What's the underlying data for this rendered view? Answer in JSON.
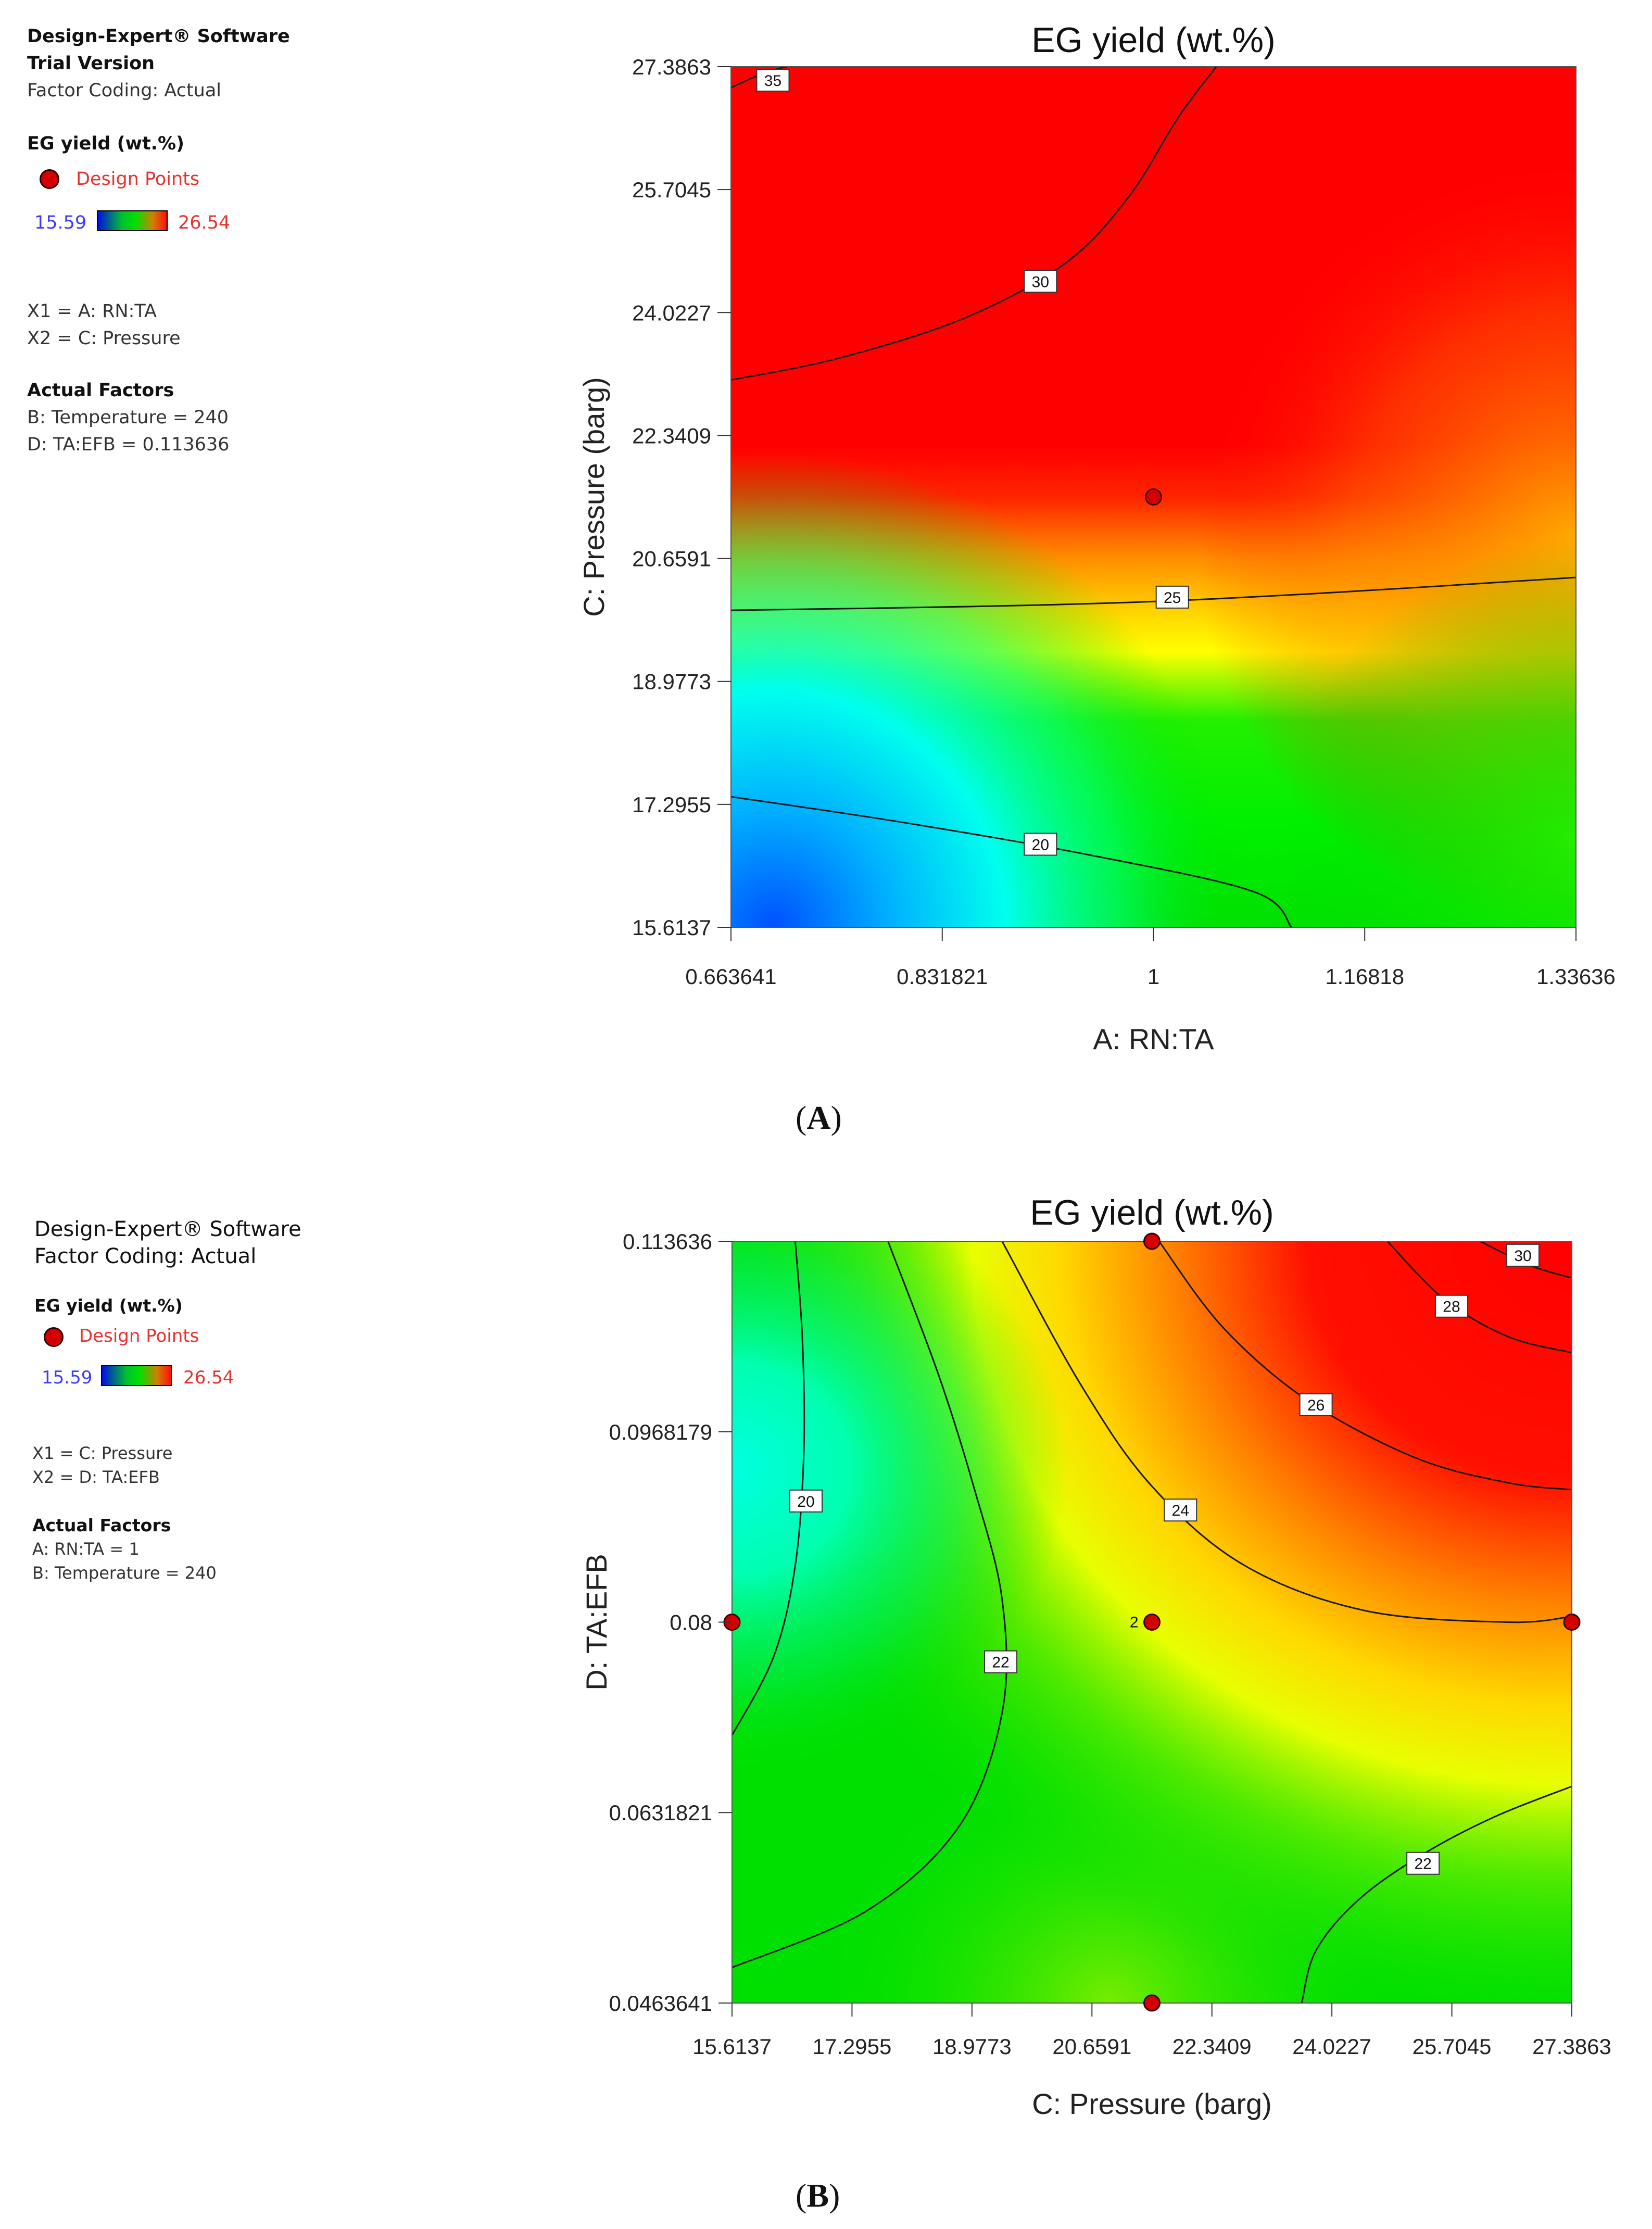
{
  "figure_captions": [
    "A",
    "B"
  ],
  "colors": {
    "high": "#ff0000",
    "mid_high": "#ff9d00",
    "mid": "#ffff00",
    "mid_low": "#00e600",
    "low_cyan": "#00ffee",
    "low": "#0050ff",
    "design_point": "#d40000",
    "legend_min_text": "#3b3bff",
    "legend_max_text": "#e8322c"
  },
  "panels": [
    {
      "id": "A",
      "software": "Design-Expert® Software",
      "edition": "Trial Version",
      "factor_coding": "Factor Coding: Actual",
      "response_title": "EG yield (wt.%)",
      "design_points_label": "Design Points",
      "legend_min": "15.59",
      "legend_max": "26.54",
      "x1_line": "X1 = A: RN:TA",
      "x2_line": "X2 = C: Pressure",
      "actual_factors_title": "Actual Factors",
      "actual_factors": [
        "B: Temperature = 240",
        "D: TA:EFB = 0.113636"
      ]
    },
    {
      "id": "B",
      "software": "Design-Expert® Software",
      "factor_coding": "Factor Coding: Actual",
      "response_title": "EG yield (wt.%)",
      "design_points_label": "Design Points",
      "legend_min": "15.59",
      "legend_max": "26.54",
      "x1_line": "X1 = C: Pressure",
      "x2_line": "X2 = D: TA:EFB",
      "actual_factors_title": "Actual Factors",
      "actual_factors": [
        "A: RN:TA = 1",
        "B: Temperature = 240"
      ]
    }
  ],
  "chart_data": [
    {
      "type": "contour",
      "title": "EG yield (wt.%)",
      "xlabel": "A: RN:TA",
      "ylabel": "C: Pressure (barg)",
      "xlim": [
        0.663641,
        1.33636
      ],
      "ylim": [
        15.6137,
        27.3863
      ],
      "x_ticks": [
        0.663641,
        0.831821,
        1,
        1.16818,
        1.33636
      ],
      "x_tick_labels": [
        "0.663641",
        "0.831821",
        "1",
        "1.16818",
        "1.33636"
      ],
      "y_ticks": [
        15.6137,
        17.2955,
        18.9773,
        20.6591,
        22.3409,
        24.0227,
        25.7045,
        27.3863
      ],
      "y_tick_labels": [
        "15.6137",
        "17.2955",
        "18.9773",
        "20.6591",
        "22.3409",
        "24.0227",
        "25.7045",
        "27.3863"
      ],
      "response_range": [
        15.59,
        26.54
      ],
      "contours": [
        {
          "level": "35",
          "points": [
            [
              0.663641,
              27.1
            ],
            [
              0.69,
              27.3
            ],
            [
              0.708,
              27.3863
            ]
          ],
          "label_at": [
            0.697,
            27.2
          ]
        },
        {
          "level": "30",
          "points": [
            [
              0.663641,
              23.1
            ],
            [
              0.75,
              23.4
            ],
            [
              0.85,
              23.95
            ],
            [
              0.93,
              24.7
            ],
            [
              0.98,
              25.6
            ],
            [
              1.02,
              26.7
            ],
            [
              1.05,
              27.3863
            ]
          ],
          "label_at": [
            0.91,
            24.45
          ]
        },
        {
          "level": "25",
          "points": [
            [
              0.663641,
              19.95
            ],
            [
              0.85,
              20.0
            ],
            [
              1.0,
              20.07
            ],
            [
              1.15,
              20.2
            ],
            [
              1.33636,
              20.4
            ]
          ],
          "label_at": [
            1.015,
            20.13
          ]
        },
        {
          "level": "20",
          "points": [
            [
              0.663641,
              17.4
            ],
            [
              0.8,
              17.05
            ],
            [
              0.95,
              16.6
            ],
            [
              1.08,
              16.1
            ],
            [
              1.11,
              15.6137
            ]
          ],
          "label_at": [
            0.91,
            16.75
          ]
        }
      ],
      "design_points": [
        {
          "x": 1,
          "y": 21.5,
          "label": ""
        }
      ]
    },
    {
      "type": "contour",
      "title": "EG yield (wt.%)",
      "xlabel": "C: Pressure (barg)",
      "ylabel": "D: TA:EFB",
      "xlim": [
        15.6137,
        27.3863
      ],
      "ylim": [
        0.0463641,
        0.113636
      ],
      "x_ticks": [
        15.6137,
        17.2955,
        18.9773,
        20.6591,
        22.3409,
        24.0227,
        25.7045,
        27.3863
      ],
      "x_tick_labels": [
        "15.6137",
        "17.2955",
        "18.9773",
        "20.6591",
        "22.3409",
        "24.0227",
        "25.7045",
        "27.3863"
      ],
      "y_ticks": [
        0.0463641,
        0.0631821,
        0.08,
        0.0968179,
        0.113636
      ],
      "y_tick_labels": [
        "0.0463641",
        "0.0631821",
        "0.08",
        "0.0968179",
        "0.113636"
      ],
      "response_range": [
        15.59,
        26.54
      ],
      "contours": [
        {
          "level": "20",
          "points": [
            [
              16.5,
              0.113636
            ],
            [
              16.6,
              0.105
            ],
            [
              16.62,
              0.095
            ],
            [
              16.5,
              0.085
            ],
            [
              16.2,
              0.077
            ],
            [
              15.6137,
              0.07
            ]
          ],
          "label_at": [
            16.65,
            0.0907
          ]
        },
        {
          "level": "22",
          "points": [
            [
              17.8,
              0.113636
            ],
            [
              18.5,
              0.102
            ],
            [
              19.0,
              0.092
            ],
            [
              19.4,
              0.082
            ],
            [
              19.4,
              0.072
            ],
            [
              18.8,
              0.062
            ],
            [
              17.5,
              0.0545
            ],
            [
              15.6137,
              0.0495
            ]
          ],
          "label_at": [
            19.38,
            0.0765
          ]
        },
        {
          "level": "24",
          "points": [
            [
              19.4,
              0.113636
            ],
            [
              20.5,
              0.101
            ],
            [
              21.5,
              0.092
            ],
            [
              22.8,
              0.085
            ],
            [
              24.5,
              0.081
            ],
            [
              26.5,
              0.08
            ],
            [
              27.3863,
              0.0805
            ]
          ],
          "label_at": [
            21.9,
            0.0899
          ]
        },
        {
          "level": "26",
          "points": [
            [
              21.6,
              0.113636
            ],
            [
              22.5,
              0.106
            ],
            [
              23.7,
              0.0995
            ],
            [
              25.2,
              0.0945
            ],
            [
              26.5,
              0.0923
            ],
            [
              27.3863,
              0.0917
            ]
          ],
          "label_at": [
            23.8,
            0.0992
          ]
        },
        {
          "level": "28",
          "points": [
            [
              24.8,
              0.113636
            ],
            [
              25.6,
              0.1085
            ],
            [
              26.5,
              0.1052
            ],
            [
              27.3863,
              0.1038
            ]
          ],
          "label_at": [
            25.7,
            0.1079
          ]
        },
        {
          "level": "30",
          "points": [
            [
              26.1,
              0.113636
            ],
            [
              26.8,
              0.1115
            ],
            [
              27.3863,
              0.1104
            ]
          ],
          "label_at": [
            26.7,
            0.1124
          ]
        },
        {
          "level": "22",
          "points": [
            [
              23.6,
              0.0463641
            ],
            [
              23.8,
              0.051
            ],
            [
              24.4,
              0.0555
            ],
            [
              25.3,
              0.0595
            ],
            [
              26.3,
              0.0628
            ],
            [
              27.3863,
              0.0655
            ]
          ],
          "label_at": [
            25.3,
            0.0587
          ]
        }
      ],
      "design_points": [
        {
          "x": 21.5,
          "y": 0.113636,
          "label": ""
        },
        {
          "x": 15.6137,
          "y": 0.08,
          "label": ""
        },
        {
          "x": 21.5,
          "y": 0.08,
          "label": "2"
        },
        {
          "x": 27.3863,
          "y": 0.08,
          "label": ""
        },
        {
          "x": 21.5,
          "y": 0.0463641,
          "label": ""
        }
      ]
    }
  ]
}
